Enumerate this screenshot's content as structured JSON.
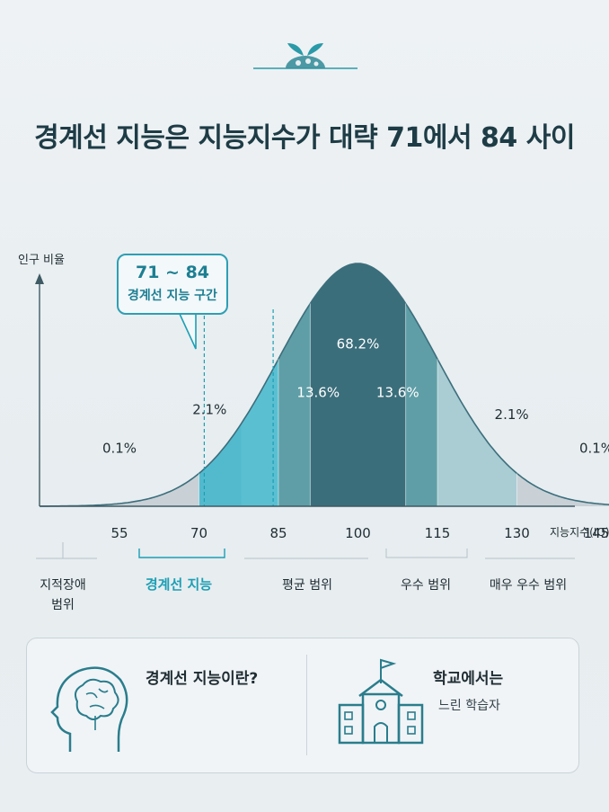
{
  "title": "경계선 지능은 지능지수가 대략 71에서 84 사이",
  "callout": {
    "range": "71 ~ 84",
    "label": "경계선 지능 구간"
  },
  "chart_data": {
    "type": "area",
    "ylabel": "인구 비율",
    "xlabel": "지능지수(IQ)",
    "x_ticks": [
      "55",
      "70",
      "85",
      "100",
      "115",
      "130",
      "145"
    ],
    "x_tick_values": [
      55,
      70,
      85,
      100,
      115,
      130,
      145
    ],
    "xlim": [
      40,
      160
    ],
    "mean": 100,
    "sd": 15,
    "segments": [
      {
        "from": 40,
        "to": 70,
        "percent": "0.1%",
        "color": "#c9d1d6"
      },
      {
        "from": 70,
        "to": 85,
        "percent": "2.1%",
        "color": "#5bbfd2"
      },
      {
        "from": 85,
        "to": 115,
        "percent": "13.6%",
        "color": "#5f9ea6"
      },
      {
        "from": 115,
        "to": 130,
        "percent": "13.6%",
        "color": "#a9cdd3"
      },
      {
        "from": 130,
        "to": 160,
        "percent": "2.1%",
        "color": "#c9d1d6"
      }
    ],
    "band_labels": [
      {
        "x": 55,
        "y": 0.22,
        "text": "0.1%",
        "color": "#1f2d33"
      },
      {
        "x": 72,
        "y": 0.38,
        "text": "2.1%",
        "color": "#1f2d33"
      },
      {
        "x": 92.5,
        "y": 0.45,
        "text": "13.6%",
        "color": "#ffffff"
      },
      {
        "x": 100,
        "y": 0.65,
        "text": "68.2%",
        "color": "#ffffff"
      },
      {
        "x": 107.5,
        "y": 0.45,
        "text": "13.6%",
        "color": "#ffffff"
      },
      {
        "x": 129,
        "y": 0.36,
        "text": "2.1%",
        "color": "#1f2d33"
      },
      {
        "x": 145,
        "y": 0.22,
        "text": "0.1%",
        "color": "#1f2d33"
      }
    ],
    "categories": [
      {
        "text": "지적장애\n범위",
        "highlight": false
      },
      {
        "text": "경계선 지능",
        "highlight": true
      },
      {
        "text": "평균 범위",
        "highlight": false
      },
      {
        "text": "우수 범위",
        "highlight": false
      },
      {
        "text": "매우 우수 범위",
        "highlight": false
      }
    ],
    "borderline_range": [
      71,
      84
    ],
    "colors": {
      "curve": "#3c6e7c",
      "highlight": "#1c9fb4",
      "axis": "#3f5a65"
    }
  },
  "card": {
    "left_title": "경계선 지능이란?",
    "right_title": "학교에서는",
    "right_sub": "느린 학습자"
  }
}
